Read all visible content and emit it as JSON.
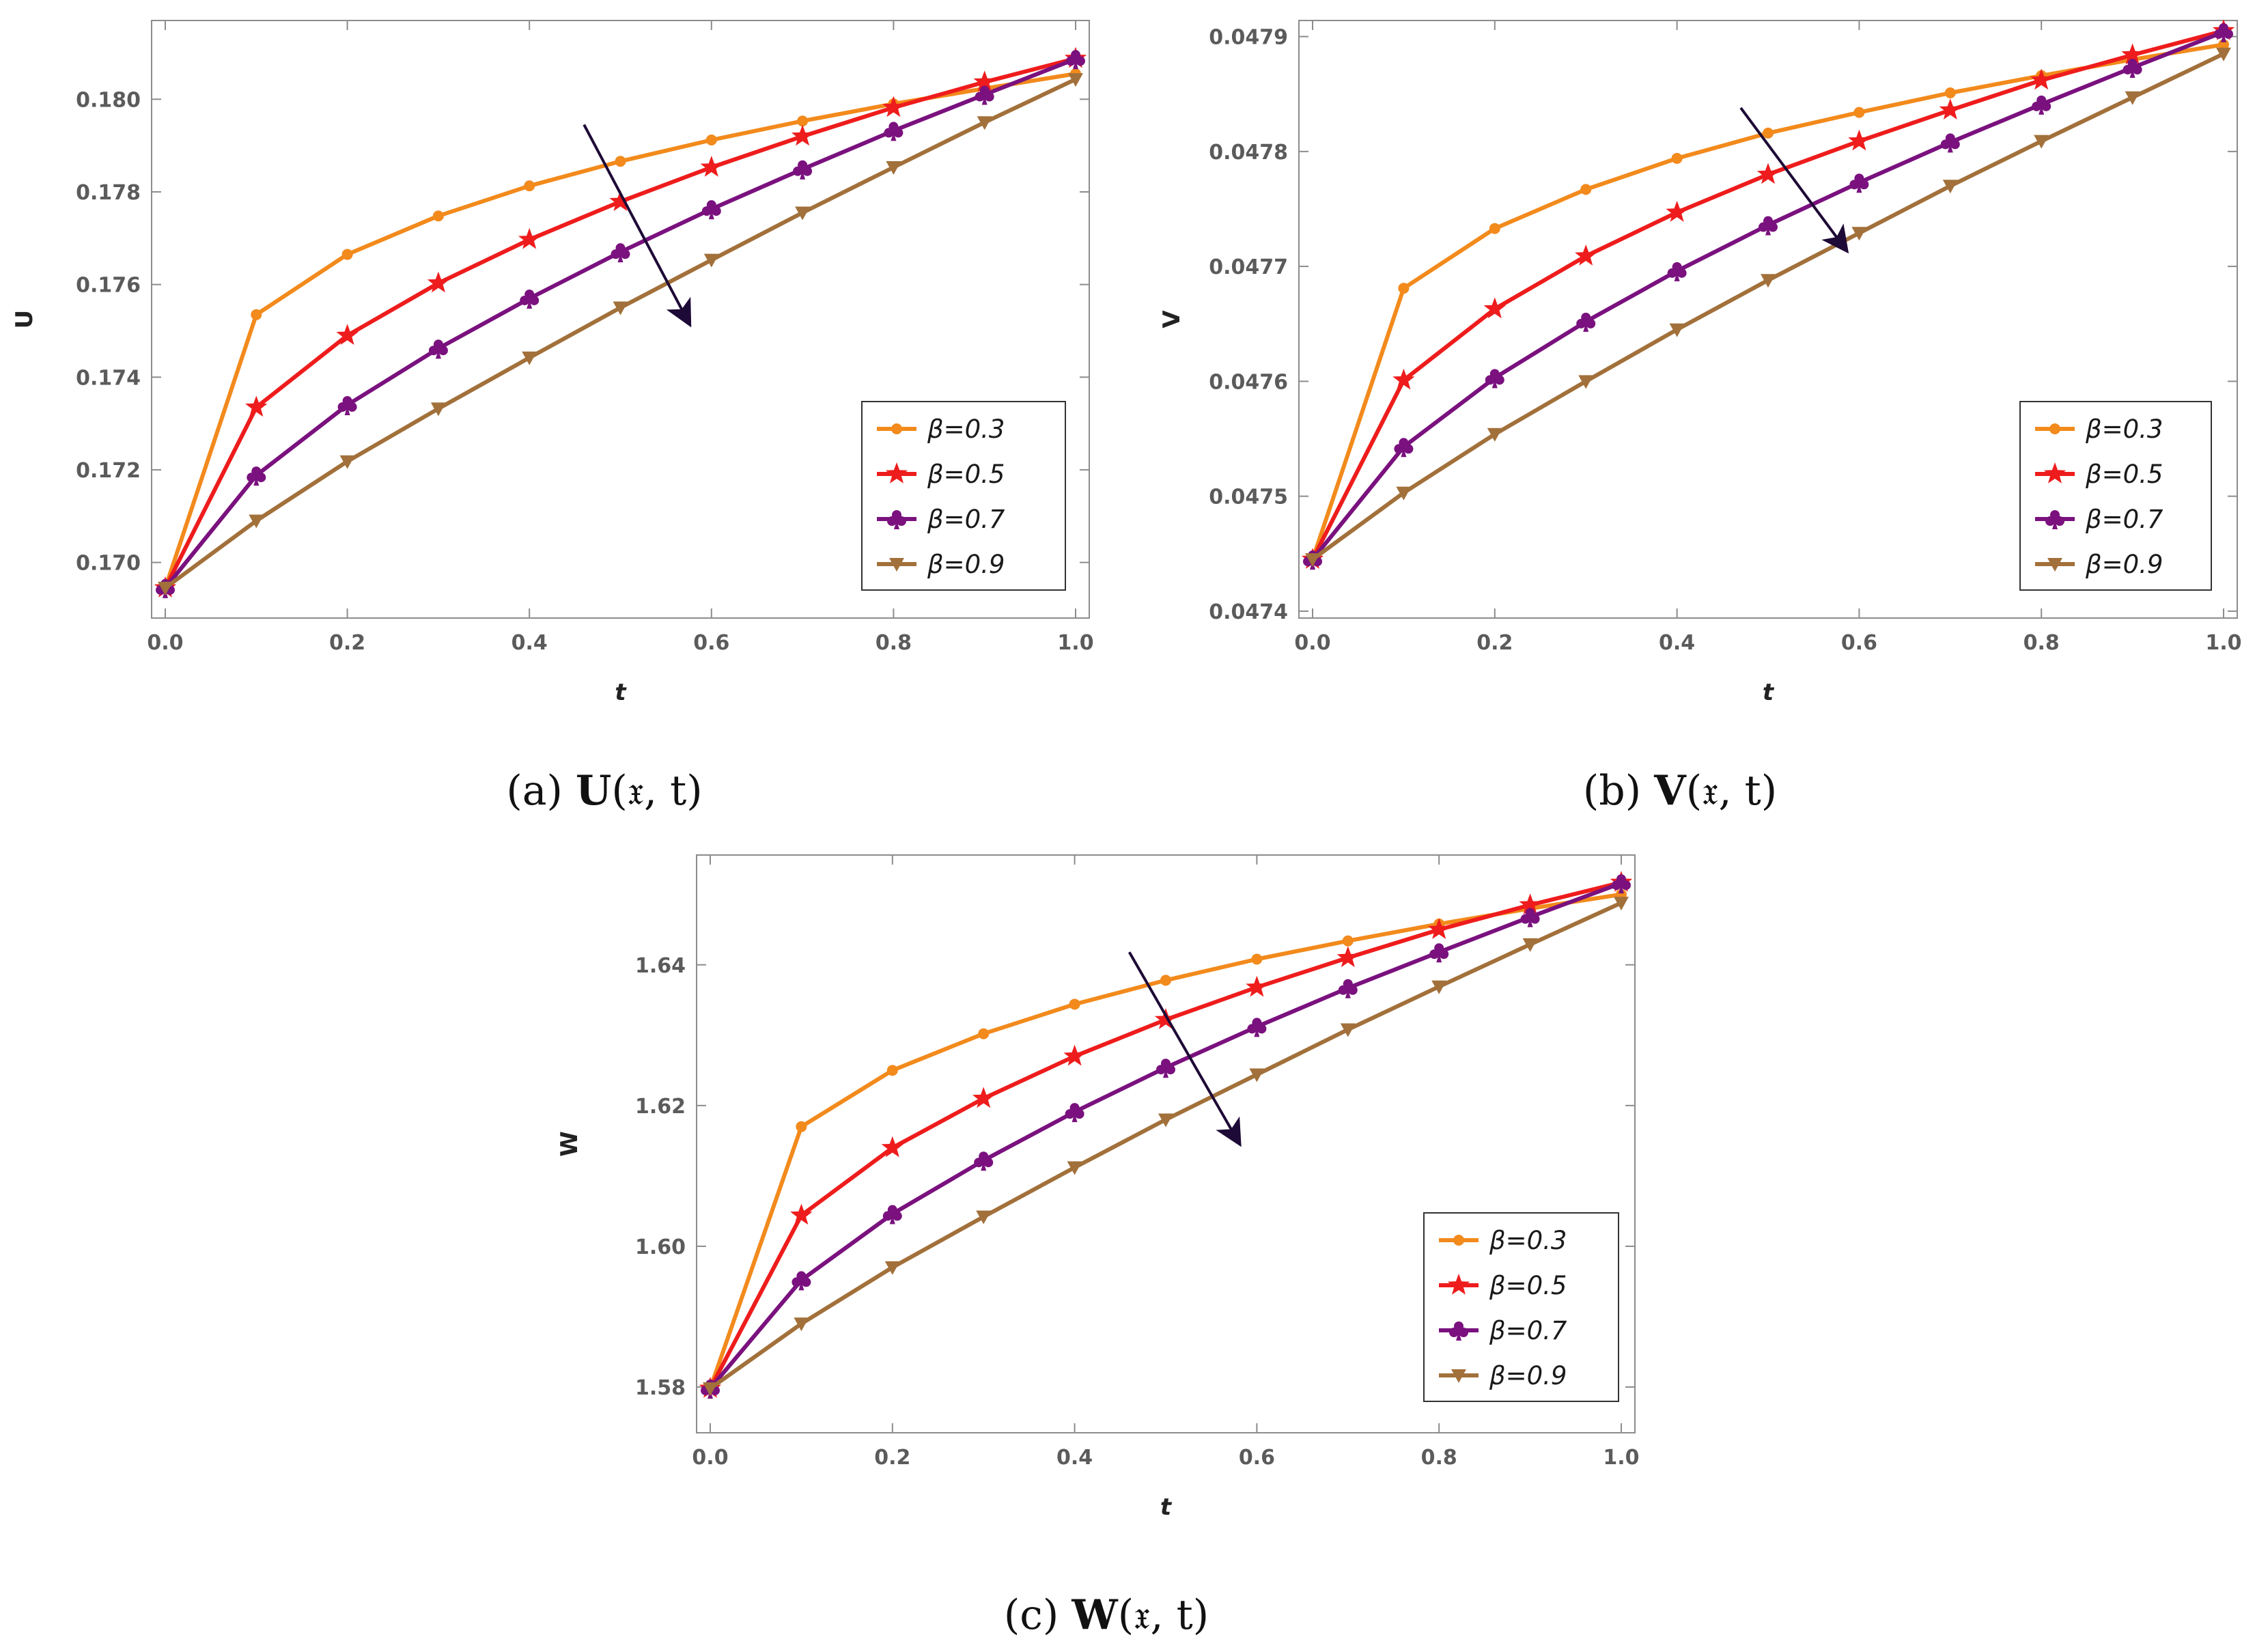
{
  "chart_data": [
    {
      "type": "line",
      "id": "U",
      "caption_label": "(a)",
      "caption_func": "U",
      "caption_args": "(𝔵, t)",
      "xlabel": "t",
      "ylabel": "U",
      "xlim": [
        -0.015,
        1.015
      ],
      "ylim": [
        0.1688,
        0.1817
      ],
      "xticks": [
        "0.0",
        "0.2",
        "0.4",
        "0.6",
        "0.8",
        "1.0"
      ],
      "xtick_values": [
        0,
        0.2,
        0.4,
        0.6,
        0.8,
        1.0
      ],
      "yticks": [
        "0.170",
        "0.172",
        "0.174",
        "0.176",
        "0.178",
        "0.180"
      ],
      "ytick_values": [
        0.17,
        0.172,
        0.174,
        0.176,
        0.178,
        0.18
      ],
      "x": [
        0,
        0.1,
        0.2,
        0.3,
        0.4,
        0.5,
        0.6,
        0.7,
        0.8,
        0.9,
        1.0
      ],
      "series": [
        {
          "name": "β=0.3",
          "values": [
            0.16945,
            0.17535,
            0.17665,
            0.17748,
            0.17813,
            0.17866,
            0.17912,
            0.17953,
            0.1799,
            0.18023,
            0.18055
          ]
        },
        {
          "name": "β=0.5",
          "values": [
            0.16945,
            0.17335,
            0.1749,
            0.17603,
            0.17697,
            0.17779,
            0.17853,
            0.1792,
            0.17982,
            0.18037,
            0.18088
          ]
        },
        {
          "name": "β=0.7",
          "values": [
            0.16945,
            0.17188,
            0.1734,
            0.17462,
            0.1757,
            0.1767,
            0.17763,
            0.17849,
            0.17932,
            0.1801,
            0.18087
          ]
        },
        {
          "name": "β=0.9",
          "values": [
            0.16945,
            0.1709,
            0.17218,
            0.17332,
            0.17442,
            0.1755,
            0.17653,
            0.17755,
            0.17853,
            0.1795,
            0.18043
          ]
        }
      ],
      "legend_position": "bottom-right",
      "arrow": {
        "from": [
          0.46,
          0.17945
        ],
        "to": [
          0.575,
          0.17518
        ]
      }
    },
    {
      "type": "line",
      "id": "V",
      "caption_label": "(b)",
      "caption_func": "V",
      "caption_args": "(𝔵, t)",
      "xlabel": "t",
      "ylabel": "V",
      "xlim": [
        -0.015,
        1.015
      ],
      "ylim": [
        0.047394,
        0.047914
      ],
      "xticks": [
        "0.0",
        "0.2",
        "0.4",
        "0.6",
        "0.8",
        "1.0"
      ],
      "xtick_values": [
        0,
        0.2,
        0.4,
        0.6,
        0.8,
        1.0
      ],
      "yticks": [
        "0.0474",
        "0.0475",
        "0.0476",
        "0.0477",
        "0.0478",
        "0.0479"
      ],
      "ytick_values": [
        0.0474,
        0.0475,
        0.0476,
        0.0477,
        0.0478,
        0.0479
      ],
      "x": [
        0,
        0.1,
        0.2,
        0.3,
        0.4,
        0.5,
        0.6,
        0.7,
        0.8,
        0.9,
        1.0
      ],
      "series": [
        {
          "name": "β=0.3",
          "values": [
            0.047445,
            0.047681,
            0.047733,
            0.047767,
            0.047794,
            0.047816,
            0.047834,
            0.047851,
            0.047866,
            0.04788,
            0.047893
          ]
        },
        {
          "name": "β=0.5",
          "values": [
            0.047445,
            0.047601,
            0.047663,
            0.047709,
            0.047747,
            0.04778,
            0.047809,
            0.047836,
            0.047862,
            0.047884,
            0.047905
          ]
        },
        {
          "name": "β=0.7",
          "values": [
            0.047445,
            0.047543,
            0.047603,
            0.047652,
            0.047696,
            0.047736,
            0.047773,
            0.047808,
            0.047841,
            0.047873,
            0.047904
          ]
        },
        {
          "name": "β=0.9",
          "values": [
            0.047445,
            0.047503,
            0.047554,
            0.0476,
            0.047645,
            0.047688,
            0.047729,
            0.04777,
            0.047809,
            0.047847,
            0.047885
          ]
        }
      ],
      "legend_position": "bottom-right",
      "arrow": {
        "from": [
          0.47,
          0.047838
        ],
        "to": [
          0.585,
          0.047715
        ]
      }
    },
    {
      "type": "line",
      "id": "W",
      "caption_label": "(c)",
      "caption_func": "W",
      "caption_args": "(𝔵, t)",
      "xlabel": "t",
      "ylabel": "W",
      "xlim": [
        -0.015,
        1.015
      ],
      "ylim": [
        1.5735,
        1.6556
      ],
      "xticks": [
        "0.0",
        "0.2",
        "0.4",
        "0.6",
        "0.8",
        "1.0"
      ],
      "xtick_values": [
        0,
        0.2,
        0.4,
        0.6,
        0.8,
        1.0
      ],
      "yticks": [
        "1.58",
        "1.60",
        "1.62",
        "1.64"
      ],
      "ytick_values": [
        1.58,
        1.6,
        1.62,
        1.64
      ],
      "x": [
        0,
        0.1,
        0.2,
        0.3,
        0.4,
        0.5,
        0.6,
        0.7,
        0.8,
        0.9,
        1.0
      ],
      "series": [
        {
          "name": "β=0.3",
          "values": [
            1.5798,
            1.617,
            1.625,
            1.6302,
            1.6344,
            1.6378,
            1.6408,
            1.6434,
            1.6458,
            1.648,
            1.65
          ]
        },
        {
          "name": "β=0.5",
          "values": [
            1.5798,
            1.6044,
            1.614,
            1.621,
            1.627,
            1.6322,
            1.6368,
            1.641,
            1.645,
            1.6485,
            1.6517
          ]
        },
        {
          "name": "β=0.7",
          "values": [
            1.5798,
            1.5952,
            1.6046,
            1.6122,
            1.6191,
            1.6254,
            1.6312,
            1.6367,
            1.6418,
            1.6468,
            1.6516
          ]
        },
        {
          "name": "β=0.9",
          "values": [
            1.5798,
            1.589,
            1.597,
            1.6042,
            1.6112,
            1.618,
            1.6244,
            1.6308,
            1.6369,
            1.6429,
            1.6488
          ]
        }
      ],
      "legend_position": "bottom-right",
      "arrow": {
        "from": [
          0.46,
          1.6418
        ],
        "to": [
          0.58,
          1.6148
        ]
      }
    }
  ],
  "colors": [
    "#F28A1C",
    "#EE1C1C",
    "#7A117E",
    "#A2703A"
  ],
  "markers": [
    "circle",
    "star",
    "club",
    "triangle-down"
  ],
  "arrow_color": "#1E0A36"
}
